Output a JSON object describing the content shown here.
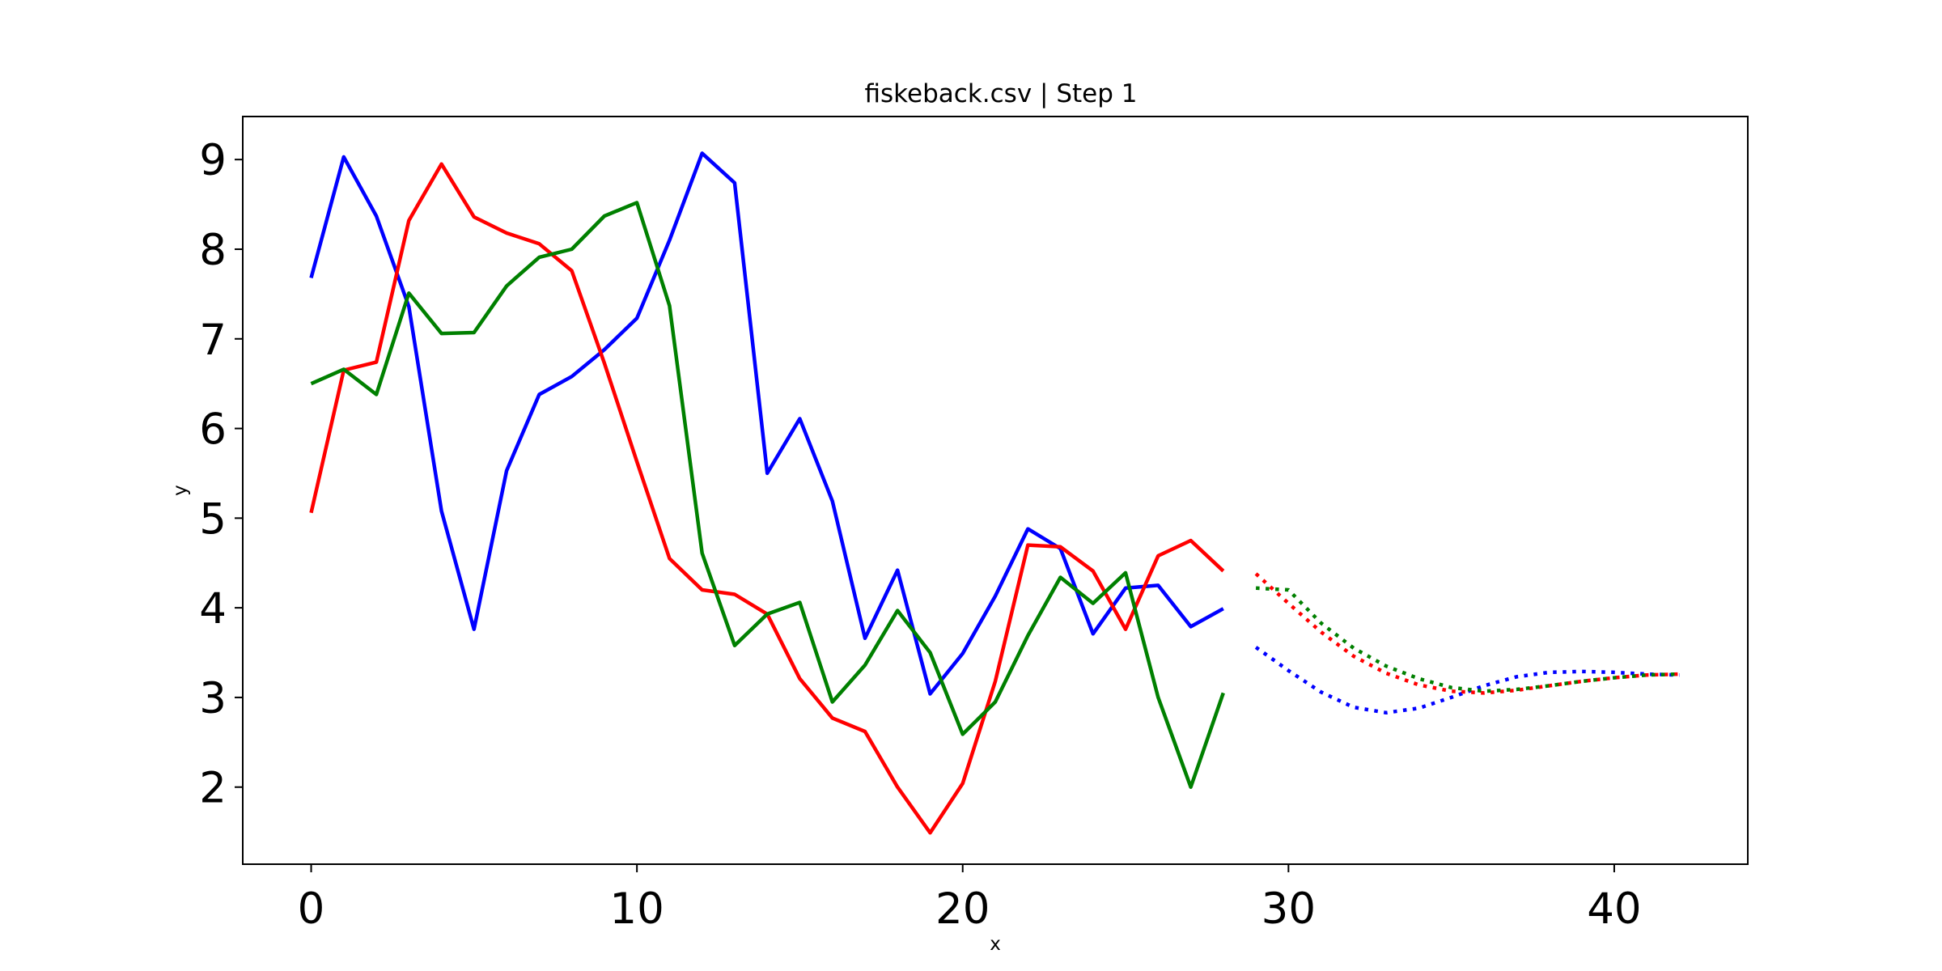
{
  "chart_data": {
    "type": "line",
    "title": "fiskeback.csv | Step 1",
    "xlabel": "x",
    "ylabel": "y",
    "xlim": [
      -2.1,
      44.1
    ],
    "ylim": [
      1.14,
      9.48
    ],
    "xticks": [
      0,
      10,
      20,
      30,
      40
    ],
    "yticks": [
      2,
      3,
      4,
      5,
      6,
      7,
      8,
      9
    ],
    "grid": false,
    "legend": "none",
    "series": [
      {
        "color": "#0000ff",
        "style": "solid",
        "x": [
          0,
          1,
          2,
          3,
          4,
          5,
          6,
          7,
          8,
          9,
          10,
          11,
          12,
          13,
          14,
          15,
          16,
          17,
          18,
          19,
          20,
          21,
          22,
          23,
          24,
          25,
          26,
          27,
          28
        ],
        "y": [
          7.68,
          9.03,
          8.37,
          7.36,
          5.08,
          3.76,
          5.53,
          6.38,
          6.58,
          6.88,
          7.23,
          8.1,
          9.07,
          8.74,
          5.5,
          6.11,
          5.19,
          3.66,
          4.42,
          3.04,
          3.49,
          4.13,
          4.88,
          4.66,
          3.71,
          4.22,
          4.25,
          3.79,
          3.99
        ]
      },
      {
        "color": "#ff0000",
        "style": "solid",
        "x": [
          0,
          1,
          2,
          3,
          4,
          5,
          6,
          7,
          8,
          9,
          10,
          11,
          12,
          13,
          14,
          15,
          16,
          17,
          18,
          19,
          20,
          21,
          22,
          23,
          24,
          25,
          26,
          27,
          28
        ],
        "y": [
          5.06,
          6.65,
          6.74,
          8.32,
          8.95,
          8.36,
          8.18,
          8.06,
          7.76,
          6.73,
          5.63,
          4.55,
          4.2,
          4.15,
          3.93,
          3.21,
          2.77,
          2.62,
          2.0,
          1.49,
          2.04,
          3.18,
          4.7,
          4.68,
          4.41,
          3.76,
          4.58,
          4.75,
          4.41
        ]
      },
      {
        "color": "#008000",
        "style": "solid",
        "x": [
          0,
          1,
          2,
          3,
          4,
          5,
          6,
          7,
          8,
          9,
          10,
          11,
          12,
          13,
          14,
          15,
          16,
          17,
          18,
          19,
          20,
          21,
          22,
          23,
          24,
          25,
          26,
          27,
          28
        ],
        "y": [
          6.5,
          6.66,
          6.38,
          7.51,
          7.06,
          7.07,
          7.59,
          7.91,
          8.0,
          8.37,
          8.52,
          7.37,
          4.61,
          3.58,
          3.93,
          4.06,
          2.95,
          3.36,
          3.97,
          3.5,
          2.59,
          2.95,
          3.69,
          4.34,
          4.05,
          4.39,
          3.0,
          2.0,
          3.05
        ]
      },
      {
        "color": "#0000ff",
        "style": "dotted",
        "x": [
          29,
          30,
          31,
          32,
          33,
          34,
          35,
          36,
          37,
          38,
          39,
          40,
          41,
          42
        ],
        "y": [
          3.56,
          3.3,
          3.06,
          2.89,
          2.83,
          2.88,
          3.0,
          3.13,
          3.23,
          3.28,
          3.29,
          3.28,
          3.26,
          3.25
        ]
      },
      {
        "color": "#ff0000",
        "style": "dotted",
        "x": [
          29,
          30,
          31,
          32,
          33,
          34,
          35,
          36,
          37,
          38,
          39,
          40,
          41,
          42
        ],
        "y": [
          4.38,
          4.05,
          3.73,
          3.46,
          3.27,
          3.14,
          3.07,
          3.05,
          3.08,
          3.13,
          3.18,
          3.22,
          3.25,
          3.26
        ]
      },
      {
        "color": "#008000",
        "style": "dotted",
        "x": [
          29,
          30,
          31,
          32,
          33,
          34,
          35,
          36,
          37,
          38,
          39,
          40,
          41,
          42
        ],
        "y": [
          4.22,
          4.2,
          3.83,
          3.55,
          3.35,
          3.21,
          3.11,
          3.07,
          3.09,
          3.13,
          3.18,
          3.22,
          3.25,
          3.26
        ]
      }
    ]
  }
}
